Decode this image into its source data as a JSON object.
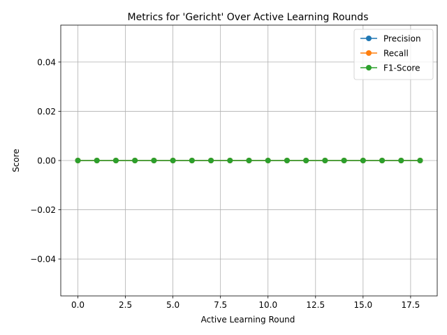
{
  "chart_data": {
    "type": "line",
    "title": "Metrics for 'Gericht' Over Active Learning Rounds",
    "xlabel": "Active Learning Round",
    "ylabel": "Score",
    "xlim": [
      -0.9,
      18.9
    ],
    "ylim": [
      -0.055,
      0.055
    ],
    "x_ticks": [
      0.0,
      2.5,
      5.0,
      7.5,
      10.0,
      12.5,
      15.0,
      17.5
    ],
    "x_tick_labels": [
      "0.0",
      "2.5",
      "5.0",
      "7.5",
      "10.0",
      "12.5",
      "15.0",
      "17.5"
    ],
    "y_ticks": [
      -0.04,
      -0.02,
      0.0,
      0.02,
      0.04
    ],
    "y_tick_labels": [
      "−0.04",
      "−0.02",
      "0.00",
      "0.02",
      "0.04"
    ],
    "grid": true,
    "legend_position": "top-right",
    "x": [
      0,
      1,
      2,
      3,
      4,
      5,
      6,
      7,
      8,
      9,
      10,
      11,
      12,
      13,
      14,
      15,
      16,
      17,
      18
    ],
    "series": [
      {
        "name": "Precision",
        "color": "#1f77b4",
        "values": [
          0,
          0,
          0,
          0,
          0,
          0,
          0,
          0,
          0,
          0,
          0,
          0,
          0,
          0,
          0,
          0,
          0,
          0,
          0
        ]
      },
      {
        "name": "Recall",
        "color": "#ff7f0e",
        "values": [
          0,
          0,
          0,
          0,
          0,
          0,
          0,
          0,
          0,
          0,
          0,
          0,
          0,
          0,
          0,
          0,
          0,
          0,
          0
        ]
      },
      {
        "name": "F1-Score",
        "color": "#2ca02c",
        "values": [
          0,
          0,
          0,
          0,
          0,
          0,
          0,
          0,
          0,
          0,
          0,
          0,
          0,
          0,
          0,
          0,
          0,
          0,
          0
        ]
      }
    ]
  }
}
